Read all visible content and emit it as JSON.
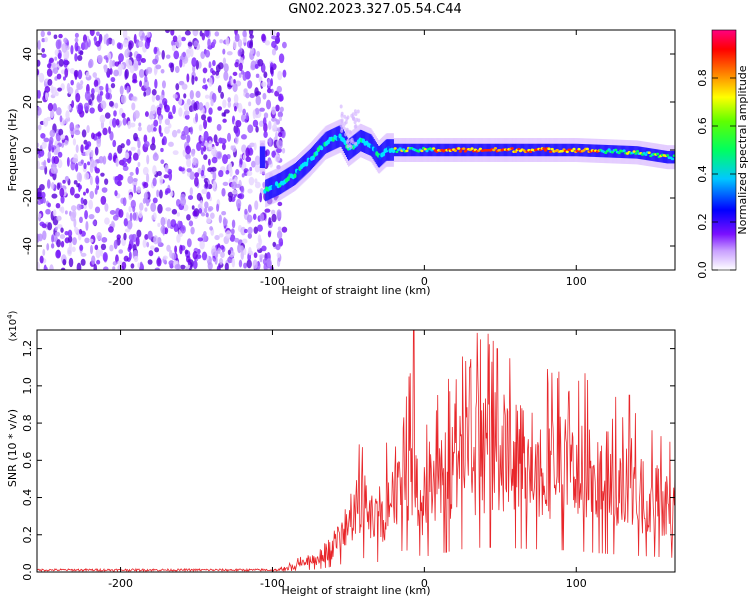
{
  "title": "GN02.2023.327.05.54.C44",
  "chart_data": [
    {
      "type": "heatmap",
      "id": "spectrogram",
      "xlabel": "Height of straight line (km)",
      "ylabel": "Frequency (Hz)",
      "xlim": [
        -255,
        165
      ],
      "ylim": [
        -50,
        50
      ],
      "xticks": [
        -200,
        -100,
        0,
        100
      ],
      "yticks": [
        -40,
        -20,
        0,
        20,
        40
      ],
      "colorbar": {
        "label": "Normalized spectral amplitude",
        "range": [
          0,
          1
        ],
        "ticks": [
          "0.0",
          "0.2",
          "0.4",
          "0.6",
          "0.8"
        ],
        "colors": [
          "#ffffff",
          "#b870ff",
          "#6a00ff",
          "#0000ff",
          "#00ffff",
          "#00ff00",
          "#ffff00",
          "#ff8000",
          "#ff0000",
          "#ff0080"
        ]
      },
      "regions": [
        {
          "name": "noise",
          "x_range": [
            -255,
            -100
          ],
          "freq_range": [
            -50,
            50
          ],
          "amplitude": "low (0.05-0.25)"
        },
        {
          "name": "rising track",
          "points": [
            [
              -105,
              -17
            ],
            [
              -95,
              -14
            ],
            [
              -85,
              -10
            ],
            [
              -75,
              -4
            ],
            [
              -65,
              3
            ],
            [
              -55,
              6
            ],
            [
              -50,
              0
            ],
            [
              -42,
              4
            ],
            [
              -35,
              2
            ],
            [
              -30,
              -3
            ],
            [
              -25,
              0
            ],
            [
              -15,
              0
            ],
            [
              0,
              0
            ],
            [
              50,
              0
            ],
            [
              100,
              0
            ],
            [
              140,
              -1
            ],
            [
              150,
              -2
            ],
            [
              160,
              -3
            ],
            [
              165,
              -3
            ]
          ]
        }
      ]
    },
    {
      "type": "line",
      "id": "snr",
      "xlabel": "Height of straight line (km)",
      "ylabel": "SNR (10 * v/v)",
      "y_scale_label": "(x10^4)",
      "xlim": [
        -255,
        165
      ],
      "ylim": [
        0,
        1.3
      ],
      "xticks": [
        -200,
        -100,
        0,
        100
      ],
      "yticks": [
        0.0,
        0.2,
        0.4,
        0.6,
        0.8,
        1.0,
        1.2
      ],
      "series": [
        {
          "color": "#e8262a",
          "envelope": [
            [
              -255,
              0.01
            ],
            [
              -150,
              0.01
            ],
            [
              -100,
              0.01
            ],
            [
              -90,
              0.03
            ],
            [
              -80,
              0.06
            ],
            [
              -70,
              0.1
            ],
            [
              -60,
              0.2
            ],
            [
              -50,
              0.35
            ],
            [
              -45,
              0.45
            ],
            [
              -40,
              0.5
            ],
            [
              -35,
              0.4
            ],
            [
              -30,
              0.35
            ],
            [
              -25,
              0.5
            ],
            [
              -20,
              0.62
            ],
            [
              -15,
              0.75
            ],
            [
              -10,
              0.78
            ],
            [
              -5,
              0.6
            ],
            [
              0,
              0.55
            ],
            [
              10,
              0.65
            ],
            [
              20,
              0.78
            ],
            [
              30,
              0.85
            ],
            [
              40,
              0.88
            ],
            [
              50,
              0.88
            ],
            [
              60,
              0.85
            ],
            [
              70,
              0.82
            ],
            [
              80,
              0.8
            ],
            [
              90,
              0.78
            ],
            [
              100,
              0.75
            ],
            [
              110,
              0.7
            ],
            [
              120,
              0.65
            ],
            [
              130,
              0.62
            ],
            [
              140,
              0.58
            ],
            [
              150,
              0.55
            ],
            [
              160,
              0.52
            ],
            [
              165,
              0.5
            ]
          ],
          "peaks": [
            [
              -7,
              1.3
            ],
            [
              -10,
              1.05
            ],
            [
              42,
              1.28
            ],
            [
              48,
              1.2
            ],
            [
              30,
              1.1
            ],
            [
              135,
              0.95
            ]
          ]
        }
      ]
    }
  ]
}
